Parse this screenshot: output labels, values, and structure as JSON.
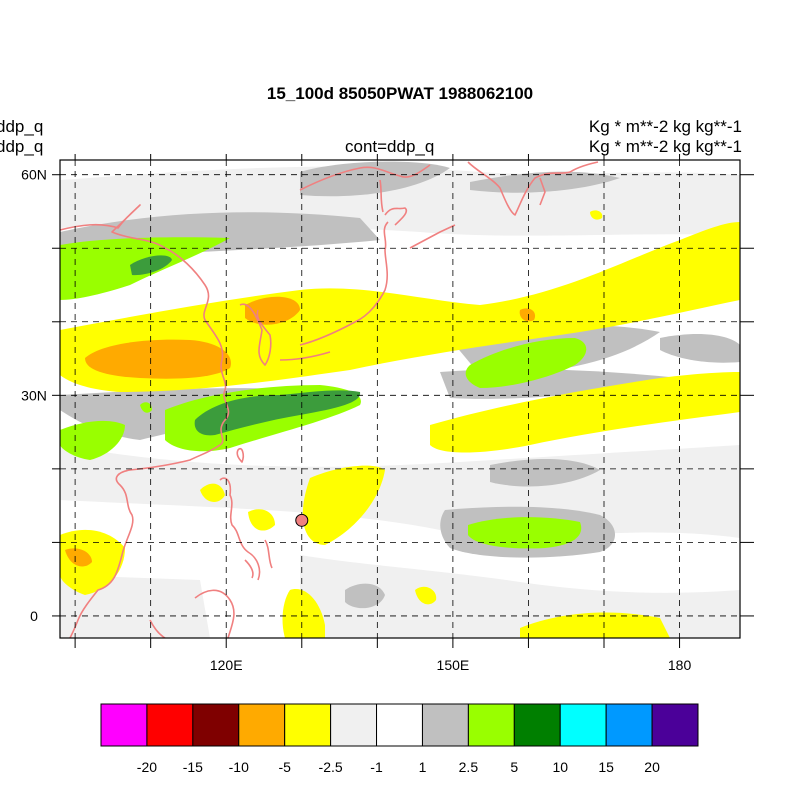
{
  "title": "15_100d 85050PWAT  1988062100",
  "left_labels": [
    "ddp_q",
    "ddp_q"
  ],
  "center_label": "cont=ddp_q",
  "right_labels": [
    "Kg  * m**-2 kg kg**-1",
    "Kg  * m**-2 kg kg**-1"
  ],
  "map": {
    "lon_range": [
      98,
      188
    ],
    "lat_range": [
      -3,
      62
    ],
    "lon_ticks": [
      {
        "value": 120,
        "label": "120E"
      },
      {
        "value": 150,
        "label": "150E"
      },
      {
        "value": 180,
        "label": "180"
      }
    ],
    "lat_ticks": [
      {
        "value": 60,
        "label": "60N"
      },
      {
        "value": 30,
        "label": "30N"
      },
      {
        "value": 0,
        "label": "0"
      }
    ],
    "grid_lons": [
      100,
      110,
      120,
      130,
      140,
      150,
      160,
      170,
      180
    ],
    "grid_lats": [
      0,
      10,
      20,
      30,
      40,
      50,
      60
    ],
    "marker": {
      "lon": 130,
      "lat": 13
    }
  },
  "colorbar": {
    "colors": [
      "#ff00ff",
      "#ff0000",
      "#7f0000",
      "#ffaa00",
      "#ffff00",
      "#f0f0f0",
      "#ffffff",
      "#c0c0c0",
      "#99ff00",
      "#007f00",
      "#00ffff",
      "#0099ff",
      "#4b0099"
    ],
    "labels": [
      "-20",
      "-15",
      "-10",
      "-5",
      "-2.5",
      "-1",
      "1",
      "2.5",
      "5",
      "10",
      "15",
      "20"
    ]
  },
  "colors": {
    "coastline": "#f08080",
    "marker_fill": "#f08080"
  }
}
